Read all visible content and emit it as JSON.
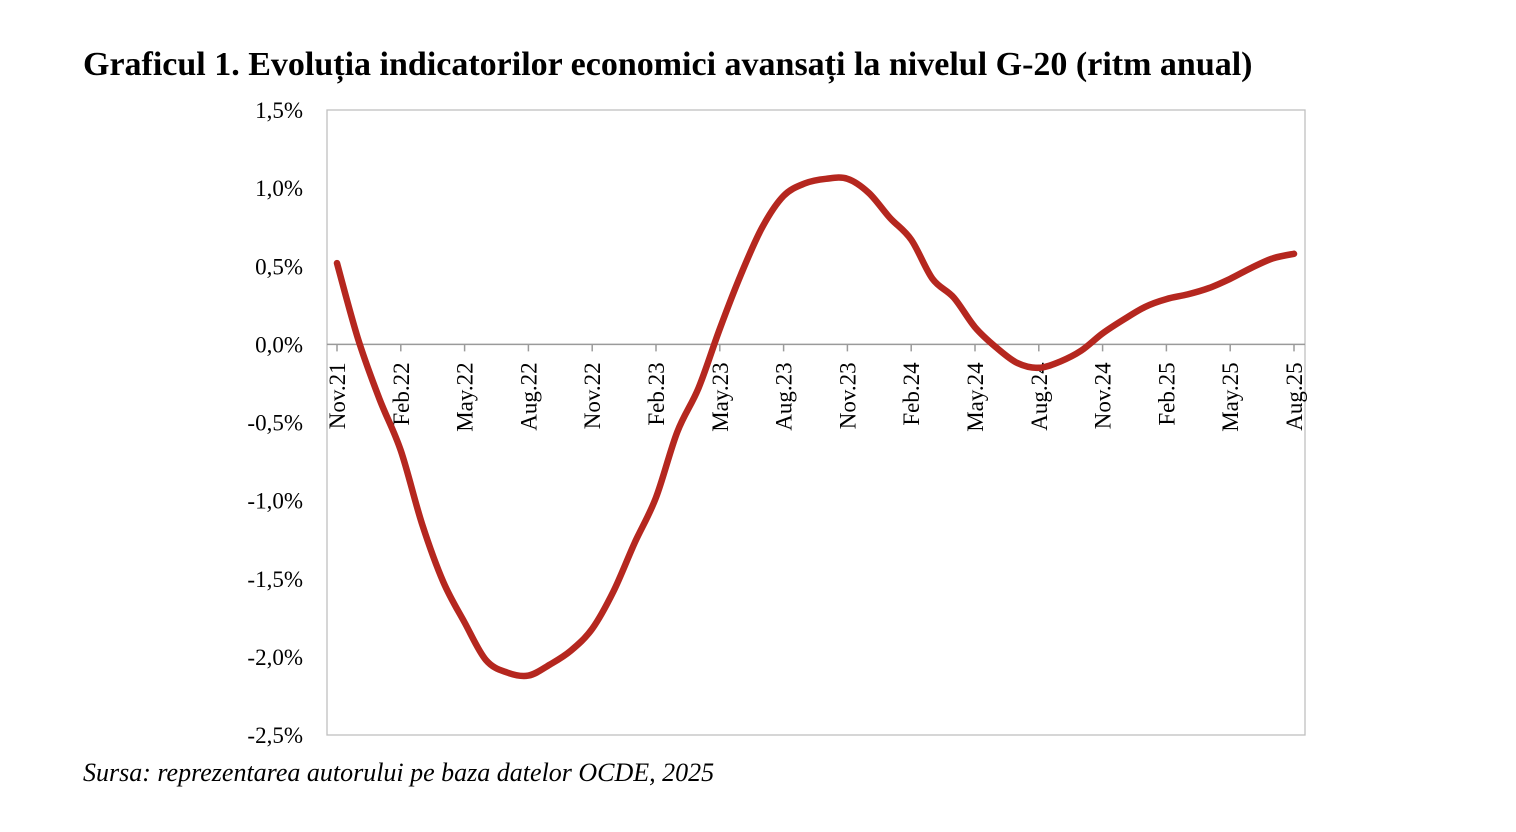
{
  "title": "Graficul 1. Evoluția indicatorilor economici avansați la nivelul G-20 (ritm anual)",
  "source": "Sursa: reprezentarea autorului pe baza datelor OCDE, 2025",
  "chart_data": {
    "type": "line",
    "title": "Graficul 1. Evoluția indicatorilor economici avansați la nivelul G-20 (ritm anual)",
    "xlabel": "",
    "ylabel": "",
    "ylim": [
      -2.5,
      1.5
    ],
    "grid": false,
    "legend": "none",
    "line_color": "#B5271F",
    "y_ticks": [
      {
        "value": 1.5,
        "label": "1,5%"
      },
      {
        "value": 1.0,
        "label": "1,0%"
      },
      {
        "value": 0.5,
        "label": "0,5%"
      },
      {
        "value": 0.0,
        "label": "0,0%"
      },
      {
        "value": -0.5,
        "label": "-0,5%"
      },
      {
        "value": -1.0,
        "label": "-1,0%"
      },
      {
        "value": -1.5,
        "label": "-1,5%"
      },
      {
        "value": -2.0,
        "label": "-2,0%"
      },
      {
        "value": -2.5,
        "label": "-2,5%"
      }
    ],
    "x_ticks": [
      {
        "index": 0,
        "label": "Nov.21"
      },
      {
        "index": 3,
        "label": "Feb.22"
      },
      {
        "index": 6,
        "label": "May.22"
      },
      {
        "index": 9,
        "label": "Aug.22"
      },
      {
        "index": 12,
        "label": "Nov.22"
      },
      {
        "index": 15,
        "label": "Feb.23"
      },
      {
        "index": 18,
        "label": "May.23"
      },
      {
        "index": 21,
        "label": "Aug.23"
      },
      {
        "index": 24,
        "label": "Nov.23"
      },
      {
        "index": 27,
        "label": "Feb.24"
      },
      {
        "index": 30,
        "label": "May.24"
      },
      {
        "index": 33,
        "label": "Aug.24"
      },
      {
        "index": 36,
        "label": "Nov.24"
      },
      {
        "index": 39,
        "label": "Feb.25"
      },
      {
        "index": 42,
        "label": "May.25"
      },
      {
        "index": 45,
        "label": "Aug.25"
      }
    ],
    "x": [
      "Nov.21",
      "Dec.21",
      "Jan.22",
      "Feb.22",
      "Mar.22",
      "Apr.22",
      "May.22",
      "Jun.22",
      "Jul.22",
      "Aug.22",
      "Sep.22",
      "Oct.22",
      "Nov.22",
      "Dec.22",
      "Jan.23",
      "Feb.23",
      "Mar.23",
      "Apr.23",
      "May.23",
      "Jun.23",
      "Jul.23",
      "Aug.23",
      "Sep.23",
      "Oct.23",
      "Nov.23",
      "Dec.23",
      "Jan.24",
      "Feb.24",
      "Mar.24",
      "Apr.24",
      "May.24",
      "Jun.24",
      "Jul.24",
      "Aug.24",
      "Sep.24",
      "Oct.24",
      "Nov.24",
      "Dec.24",
      "Jan.25",
      "Feb.25",
      "Mar.25",
      "Apr.25",
      "May.25",
      "Jun.25",
      "Jul.25",
      "Aug.25"
    ],
    "series": [
      {
        "values": [
          0.52,
          0.03,
          -0.35,
          -0.68,
          -1.15,
          -1.52,
          -1.78,
          -2.02,
          -2.1,
          -2.12,
          -2.05,
          -1.96,
          -1.82,
          -1.58,
          -1.27,
          -0.98,
          -0.56,
          -0.28,
          0.1,
          0.45,
          0.75,
          0.95,
          1.03,
          1.06,
          1.06,
          0.97,
          0.81,
          0.67,
          0.42,
          0.3,
          0.11,
          -0.02,
          -0.12,
          -0.15,
          -0.11,
          -0.04,
          0.07,
          0.16,
          0.24,
          0.29,
          0.32,
          0.36,
          0.42,
          0.49,
          0.55,
          0.58
        ]
      }
    ]
  }
}
